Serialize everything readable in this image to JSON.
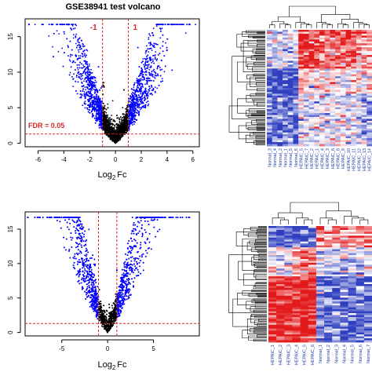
{
  "chart_data": [
    {
      "type": "scatter",
      "subtype": "volcano",
      "title": "GSE38941 test volcano",
      "xlabel_prefix": "Log",
      "xlabel_sub": "2",
      "xlabel_suffix": "Fc",
      "ylabel": "",
      "xlim": [
        -7,
        6.5
      ],
      "ylim": [
        -0.5,
        17.5
      ],
      "xticks": [
        -6,
        -4,
        -2,
        0,
        2,
        4,
        6
      ],
      "yticks": [
        0,
        5,
        10,
        15
      ],
      "fc_threshold": 1,
      "fdr_line_y": 1.3,
      "threshold_label_left": "-1",
      "threshold_label_right": "1",
      "fdr_label": "FDR = 0.05",
      "x_spread": 1.55,
      "point_colors": {
        "significant": "#0000ff",
        "nonsignificant": "#000000"
      },
      "line_color": "#d62728",
      "grid": false
    },
    {
      "type": "heatmap",
      "subtype": "clustered",
      "n_columns": 20,
      "column_labels": [
        "Normal_3",
        "Normal_4",
        "Normal_2",
        "Normal_1",
        "Normal_5",
        "Normal_6",
        "HEPAIC_5",
        "HEPAIC_7",
        "HEPAIC_2",
        "HEPAIC_1",
        "HEPAIC_4",
        "HEPAIC_3",
        "HEPAIC_6",
        "HEPAIC_8",
        "HEPAIC_9",
        "HEPAIC_10",
        "HEPAIC_11",
        "HEPAIC_12",
        "HEPAIC_13",
        "HEPAIC_14"
      ],
      "column_label_color": "#1f3aa8",
      "color_low": "#2f3fbf",
      "color_mid": "#ffffff",
      "color_high": "#e31a1c"
    },
    {
      "type": "scatter",
      "subtype": "volcano",
      "title": "",
      "xlabel_prefix": "Log",
      "xlabel_sub": "2",
      "xlabel_suffix": "Fc",
      "xlim": [
        -9,
        10
      ],
      "ylim": [
        -0.5,
        17.5
      ],
      "xticks": [
        -5,
        0,
        5
      ],
      "yticks": [
        0,
        5,
        10,
        15
      ],
      "fc_threshold": 1,
      "fdr_line_y": 1.3,
      "x_spread": 2.4,
      "point_colors": {
        "significant": "#0000ff",
        "nonsignificant": "#000000"
      },
      "line_color": "#d62728",
      "grid": false
    },
    {
      "type": "heatmap",
      "subtype": "clustered",
      "n_columns": 13,
      "column_labels": [
        "HEPAIC_1",
        "HEPAIC_2",
        "HEPAIC_3",
        "HEPAIC_4",
        "HEPAIC_5",
        "HEPAIC_6",
        "Normal_1",
        "Normal_2",
        "Normal_3",
        "Normal_4",
        "Normal_5",
        "Normal_6",
        "Normal_7"
      ],
      "column_label_color": "#1f3aa8",
      "color_low": "#2f3fbf",
      "color_mid": "#ffffff",
      "color_high": "#e31a1c"
    }
  ]
}
